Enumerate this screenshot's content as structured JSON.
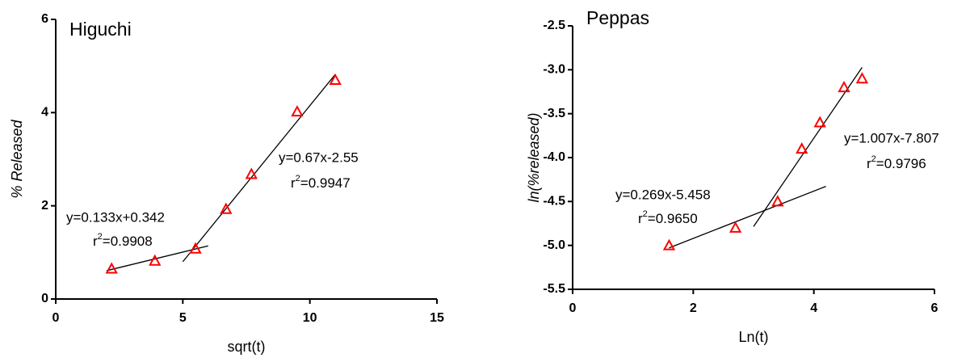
{
  "chart_data": [
    {
      "type": "scatter",
      "title": "Higuchi",
      "x_label": "sqrt(t)",
      "y_label": "% Released",
      "y_label_italic": true,
      "marker_color": "#ff0000",
      "line_color": "#000000",
      "x": [
        2.2,
        3.9,
        5.5,
        6.7,
        7.7,
        9.5,
        11.0
      ],
      "values": [
        0.65,
        0.82,
        1.08,
        1.93,
        2.68,
        4.02,
        4.7
      ],
      "xlim": [
        0,
        15
      ],
      "xticks": [
        0,
        5,
        10,
        15
      ],
      "ylim": [
        0,
        6
      ],
      "yticks": [
        0,
        2,
        4,
        6
      ],
      "fit_lines": [
        {
          "x": [
            2.0,
            6.0
          ],
          "y": [
            0.608,
            1.14
          ],
          "equation": "y=0.133x+0.342",
          "r_symbol": "r",
          "r_power": "2",
          "r_value": "=0.9908"
        },
        {
          "x": [
            5.0,
            11.0
          ],
          "y": [
            0.8,
            4.82
          ],
          "equation": "y=0.67x-2.55",
          "r_symbol": "r",
          "r_power": "2",
          "r_value": "=0.9947"
        }
      ]
    },
    {
      "type": "scatter",
      "title": "Peppas",
      "x_label": "Ln(t)",
      "y_label": "ln(%released)",
      "y_label_italic": true,
      "marker_color": "#ff0000",
      "line_color": "#000000",
      "x": [
        1.6,
        2.7,
        3.4,
        3.8,
        4.1,
        4.5,
        4.8
      ],
      "values": [
        -5.0,
        -4.8,
        -4.5,
        -3.9,
        -3.6,
        -3.2,
        -3.1
      ],
      "xlim": [
        0,
        6
      ],
      "xticks": [
        0,
        2,
        4,
        6
      ],
      "ylim": [
        -5.5,
        -2.5
      ],
      "yticks": [
        {
          "value": -5.5,
          "label": "-5.5"
        },
        {
          "value": -5,
          "label": "-5.0"
        },
        {
          "value": -4.5,
          "label": "-4.5"
        },
        {
          "value": -4,
          "label": "-4.0"
        },
        {
          "value": -3.5,
          "label": "-3.5"
        },
        {
          "value": -3,
          "label": "-3.0"
        },
        {
          "value": -2.5,
          "label": "-2.5"
        }
      ],
      "fit_lines": [
        {
          "x": [
            1.6,
            4.2
          ],
          "y": [
            -5.028,
            -4.328
          ],
          "equation": "y=0.269x-5.458",
          "r_symbol": "r",
          "r_power": "2",
          "r_value": "=0.9650"
        },
        {
          "x": [
            3.0,
            4.8
          ],
          "y": [
            -4.786,
            -2.973
          ],
          "equation": "y=1.007x-7.807",
          "r_symbol": "r",
          "r_power": "2",
          "r_value": "=0.9796"
        }
      ]
    }
  ]
}
